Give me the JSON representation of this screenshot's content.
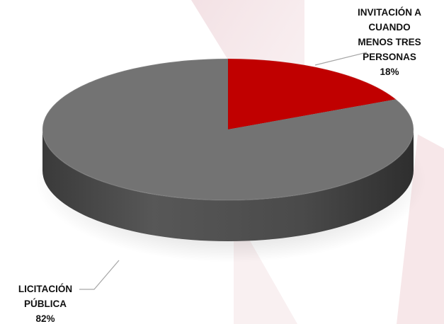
{
  "chart_data": {
    "type": "pie",
    "style": "3d",
    "title": "",
    "categories": [
      "INVITACIÓN A CUANDO MENOS TRES PERSONAS",
      "LICITACIÓN PÚBLICA"
    ],
    "values": [
      18,
      82
    ],
    "unit": "%",
    "data_labels": [
      {
        "lines": [
          "INVITACIÓN A",
          "CUANDO",
          "MENOS TRES",
          "PERSONAS",
          "18%"
        ]
      },
      {
        "lines": [
          "LICITACIÓN",
          "PÚBLICA",
          "82%"
        ]
      }
    ],
    "colors": [
      "#c00000",
      "#737373"
    ],
    "legend": "none"
  }
}
